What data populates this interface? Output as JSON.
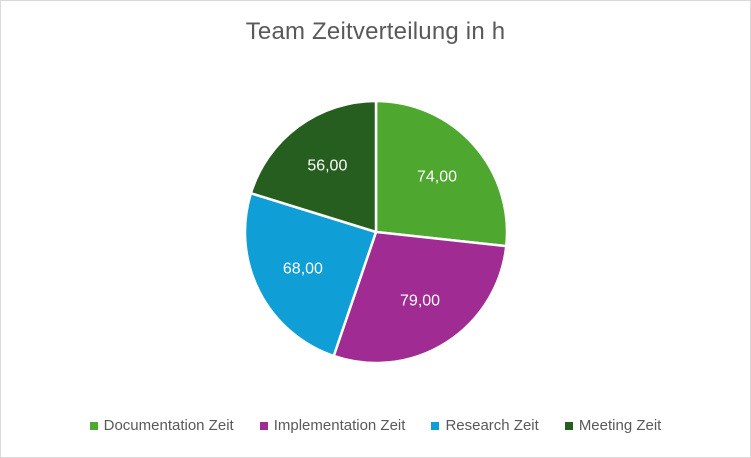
{
  "chart_data": {
    "type": "pie",
    "title": "Team Zeitverteilung in h",
    "categories": [
      "Documentation Zeit",
      "Implementation Zeit",
      "Research Zeit",
      "Meeting Zeit"
    ],
    "values": [
      74,
      79,
      68,
      56
    ],
    "value_labels": [
      "74,00",
      "79,00",
      "68,00",
      "56,00"
    ],
    "colors": [
      "#4ea72e",
      "#a02b93",
      "#0f9ed5",
      "#255e1f"
    ],
    "start_angle_deg": 0,
    "direction": "clockwise",
    "legend_position": "bottom"
  }
}
